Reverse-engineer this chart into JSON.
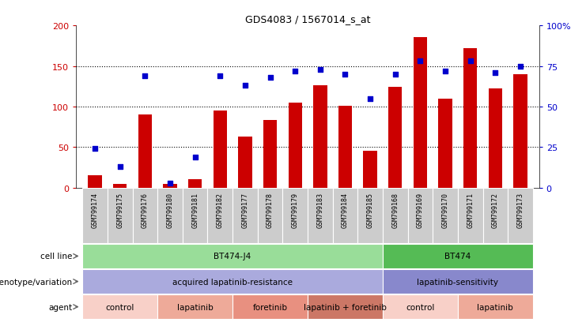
{
  "title": "GDS4083 / 1567014_s_at",
  "samples": [
    "GSM799174",
    "GSM799175",
    "GSM799176",
    "GSM799180",
    "GSM799181",
    "GSM799182",
    "GSM799177",
    "GSM799178",
    "GSM799179",
    "GSM799183",
    "GSM799184",
    "GSM799185",
    "GSM799168",
    "GSM799169",
    "GSM799170",
    "GSM799171",
    "GSM799172",
    "GSM799173"
  ],
  "counts": [
    15,
    5,
    90,
    5,
    10,
    95,
    63,
    83,
    105,
    126,
    101,
    45,
    124,
    186,
    110,
    172,
    122,
    140
  ],
  "percentiles": [
    24,
    13,
    69,
    3,
    19,
    69,
    63,
    68,
    72,
    73,
    70,
    55,
    70,
    78,
    72,
    78,
    71,
    75
  ],
  "bar_color": "#cc0000",
  "dot_color": "#0000cc",
  "ylim_left": [
    0,
    200
  ],
  "ylim_right": [
    0,
    100
  ],
  "yticks_left": [
    0,
    50,
    100,
    150,
    200
  ],
  "ytick_labels_left": [
    "0",
    "50",
    "100",
    "150",
    "200"
  ],
  "yticks_right": [
    0,
    25,
    50,
    75,
    100
  ],
  "ytick_labels_right": [
    "0",
    "25",
    "50",
    "75",
    "100%"
  ],
  "cell_line_groups": [
    {
      "label": "BT474-J4",
      "start": 0,
      "end": 12,
      "color": "#99dd99"
    },
    {
      "label": "BT474",
      "start": 12,
      "end": 18,
      "color": "#55bb55"
    }
  ],
  "genotype_groups": [
    {
      "label": "acquired lapatinib-resistance",
      "start": 0,
      "end": 12,
      "color": "#aaaadd"
    },
    {
      "label": "lapatinib-sensitivity",
      "start": 12,
      "end": 18,
      "color": "#8888cc"
    }
  ],
  "agent_groups": [
    {
      "label": "control",
      "start": 0,
      "end": 3,
      "color": "#f8d0c8"
    },
    {
      "label": "lapatinib",
      "start": 3,
      "end": 6,
      "color": "#eeaa99"
    },
    {
      "label": "foretinib",
      "start": 6,
      "end": 9,
      "color": "#e89080"
    },
    {
      "label": "lapatinib + foretinib",
      "start": 9,
      "end": 12,
      "color": "#cc7766"
    },
    {
      "label": "control",
      "start": 12,
      "end": 15,
      "color": "#f8d0c8"
    },
    {
      "label": "lapatinib",
      "start": 15,
      "end": 18,
      "color": "#eeaa99"
    }
  ],
  "left_label_color": "#cc0000",
  "right_label_color": "#0000cc",
  "bg_color": "#ffffff",
  "tick_bg_color": "#cccccc",
  "row_label_color": "#666666"
}
